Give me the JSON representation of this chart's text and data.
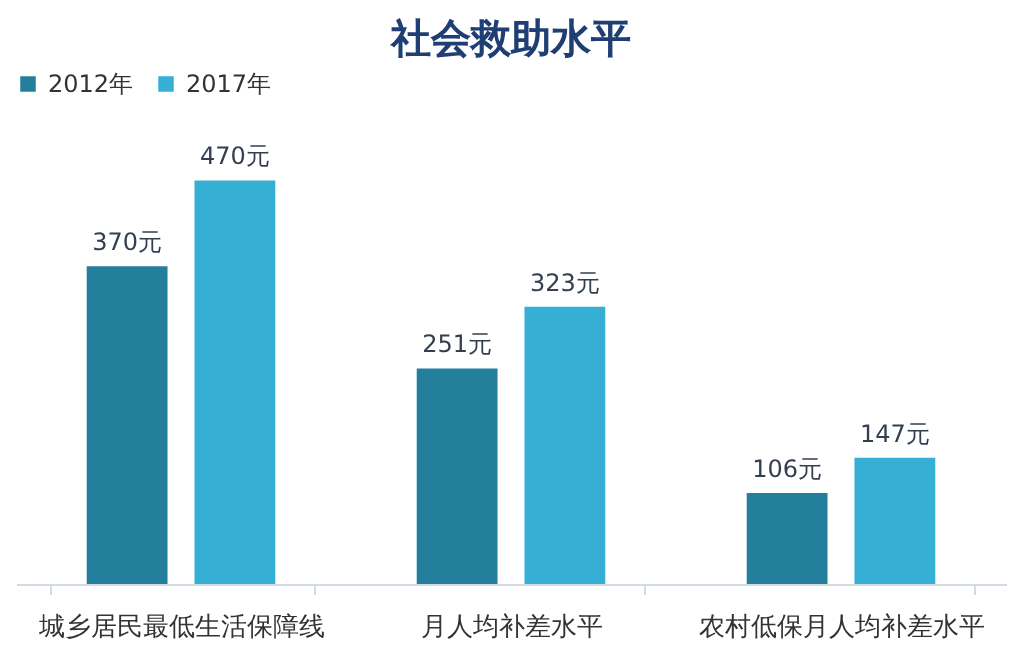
{
  "chart_data": {
    "type": "bar",
    "title": "社会救助水平",
    "categories": [
      "城乡居民最低生活保障线",
      "月人均补差水平",
      "农村低保月人均补差水平"
    ],
    "series": [
      {
        "name": "2012年",
        "color": "#237f9b",
        "values": [
          370,
          251,
          106
        ],
        "value_labels": [
          "370元",
          "251元",
          "106元"
        ]
      },
      {
        "name": "2017年",
        "color": "#35b0d4",
        "values": [
          470,
          323,
          147
        ],
        "value_labels": [
          "470元",
          "323元",
          "147元"
        ]
      }
    ],
    "legend": "top",
    "grid": false
  }
}
